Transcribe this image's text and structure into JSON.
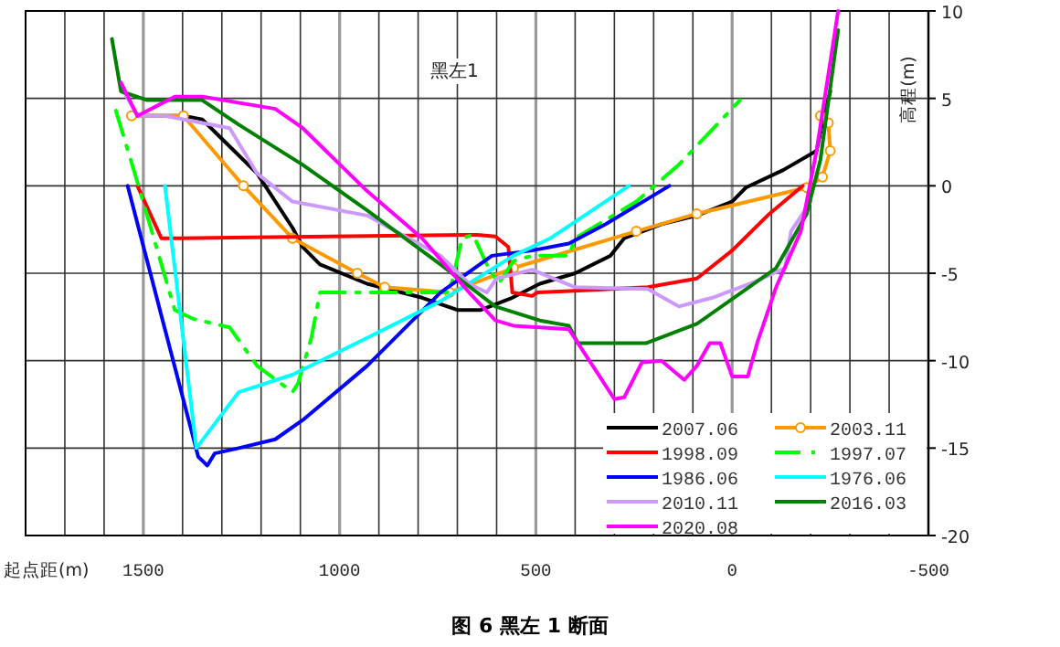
{
  "chart_data": {
    "type": "line",
    "title": "图 6 黑左 1 断面",
    "xlabel": "起点距(m)",
    "ylabel": "高程(m)",
    "annotations": [
      "黑左1"
    ],
    "xlim": [
      1800,
      -500
    ],
    "ylim": [
      -20,
      10
    ],
    "xticks": [
      {
        "value": 1700,
        "label": null
      },
      {
        "value": 1600,
        "label": null
      },
      1500,
      {
        "value": 1400,
        "label": null
      },
      {
        "value": 1300,
        "label": null
      },
      {
        "value": 1200,
        "label": null
      },
      {
        "value": 1100,
        "label": null
      },
      1000,
      {
        "value": 900,
        "label": null
      },
      {
        "value": 800,
        "label": null
      },
      {
        "value": 700,
        "label": null
      },
      {
        "value": 600,
        "label": null
      },
      500,
      {
        "value": 400,
        "label": null
      },
      {
        "value": 300,
        "label": null
      },
      {
        "value": 200,
        "label": null
      },
      {
        "value": 100,
        "label": null
      },
      0,
      {
        "value": -100,
        "label": null
      },
      {
        "value": -200,
        "label": null
      },
      {
        "value": -300,
        "label": null
      },
      {
        "value": -400,
        "label": null
      },
      -500
    ],
    "yticks": [
      10,
      5,
      0,
      -5,
      -10,
      -15,
      -20
    ],
    "grid": true,
    "legend": "bottom right",
    "marker": "none",
    "line_style": "solid",
    "series": [
      {
        "name": "2007.06",
        "color": "#000000",
        "x": [
          1530,
          1398,
          1350,
          1305,
          1210,
          1120,
          1094,
          1050,
          930,
          790,
          700,
          640,
          560,
          490,
          400,
          310,
          275,
          180,
          90,
          0,
          -35,
          -130,
          -215,
          -230,
          -250
        ],
        "values": [
          4.0,
          4.0,
          3.8,
          2.8,
          0.7,
          -2.4,
          -3.5,
          -4.5,
          -5.6,
          -6.4,
          -7.1,
          -7.1,
          -6.4,
          -5.6,
          -5.0,
          -4.0,
          -3.0,
          -2.2,
          -1.7,
          -0.9,
          -0.1,
          0.9,
          2.0,
          3.6,
          5.4
        ]
      },
      {
        "name": "2003.11",
        "color": "#ff9900",
        "marker": "circle",
        "x": [
          1530,
          1398,
          1245,
          1120,
          955,
          885,
          720,
          557,
          244,
          90,
          -190,
          -230,
          -250,
          -245,
          -225
        ],
        "values": [
          4.0,
          4.0,
          0,
          -3.0,
          -5.0,
          -5.8,
          -6.1,
          -4.7,
          -2.6,
          -1.6,
          -0.1,
          0.5,
          2.0,
          3.6,
          4.0
        ]
      },
      {
        "name": "1998.09",
        "color": "#ff0000",
        "x": [
          1515,
          1454,
          1412,
          650,
          603,
          570,
          560,
          510,
          496,
          402,
          215,
          90,
          0,
          -95,
          -180
        ],
        "values": [
          0,
          -3.0,
          -3.0,
          -2.8,
          -2.9,
          -3.5,
          -6.1,
          -6.3,
          -6.1,
          -6.0,
          -5.8,
          -5.3,
          -3.7,
          -1.6,
          0
        ]
      },
      {
        "name": "1997.07",
        "color": "#00ff00",
        "line_style": "dashed",
        "x": [
          1570,
          1515,
          1420,
          1374,
          1280,
          1210,
          1120,
          1106,
          1072,
          1050,
          980,
          720,
          688,
          660,
          625,
          595,
          557,
          510,
          416,
          400,
          244,
          136,
          -20
        ],
        "values": [
          4.3,
          0.2,
          -7.1,
          -7.6,
          -8.1,
          -10.3,
          -11.8,
          -11.3,
          -8.7,
          -6.1,
          -6.1,
          -6.1,
          -3.0,
          -2.8,
          -4.5,
          -5.6,
          -4.3,
          -4.0,
          -4.0,
          -3.0,
          -0.9,
          1.2,
          4.9
        ]
      },
      {
        "name": "1986.06",
        "color": "#0000ff",
        "x": [
          1540,
          1445,
          1360,
          1337,
          1318,
          1257,
          1164,
          1094,
          930,
          743,
          612,
          510,
          416,
          323,
          160
        ],
        "values": [
          0,
          -8.2,
          -15.5,
          -16.0,
          -15.3,
          -15.0,
          -14.5,
          -13.4,
          -10.3,
          -6.1,
          -4.0,
          -3.7,
          -3.3,
          -2.2,
          0
        ]
      },
      {
        "name": "1976.06",
        "color": "#00ffff",
        "x": [
          1445,
          1365,
          1257,
          1120,
          930,
          743,
          557,
          463,
          263
        ],
        "values": [
          0,
          -15.0,
          -11.8,
          -10.8,
          -8.7,
          -6.6,
          -4.0,
          -3.0,
          0
        ]
      },
      {
        "name": "2010.11",
        "color": "#cc99ff",
        "x": [
          1550,
          1515,
          1445,
          1280,
          1210,
          1120,
          930,
          743,
          670,
          625,
          600,
          510,
          400,
          215,
          136,
          50,
          -56,
          -135,
          -150,
          -200
        ],
        "values": [
          5.4,
          4.0,
          4.0,
          3.3,
          0.7,
          -0.9,
          -1.7,
          -4.0,
          -5.6,
          -6.1,
          -5.3,
          -4.8,
          -5.8,
          -5.9,
          -6.9,
          -6.4,
          -5.5,
          -4.7,
          -2.6,
          -0.9
        ]
      },
      {
        "name": "2016.03",
        "color": "#008000",
        "x": [
          1580,
          1557,
          1490,
          1350,
          1257,
          1094,
          930,
          743,
          603,
          490,
          416,
          393,
          220,
          90,
          -112,
          -190,
          -225,
          -270
        ],
        "values": [
          8.4,
          5.4,
          4.9,
          4.9,
          3.5,
          1.2,
          -1.4,
          -4.5,
          -6.9,
          -7.7,
          -8.0,
          -9.0,
          -9.0,
          -7.9,
          -4.7,
          -1.6,
          1.5,
          8.9
        ]
      },
      {
        "name": "2020.08",
        "color": "#ff00ff",
        "x": [
          1557,
          1515,
          1480,
          1420,
          1350,
          1164,
          1094,
          930,
          790,
          670,
          603,
          557,
          416,
          355,
          300,
          275,
          230,
          180,
          122,
          90,
          57,
          30,
          0,
          -40,
          -65,
          -112,
          -175,
          -215,
          -270
        ],
        "values": [
          5.9,
          4.0,
          4.4,
          5.1,
          5.1,
          4.4,
          3.3,
          -0.3,
          -3.0,
          -6.1,
          -7.7,
          -8.0,
          -8.2,
          -10.3,
          -12.2,
          -12.1,
          -10.1,
          -10.0,
          -11.1,
          -10.3,
          -9.0,
          -9.0,
          -10.9,
          -10.9,
          -8.9,
          -5.8,
          -2.6,
          2.0,
          10
        ]
      }
    ]
  }
}
